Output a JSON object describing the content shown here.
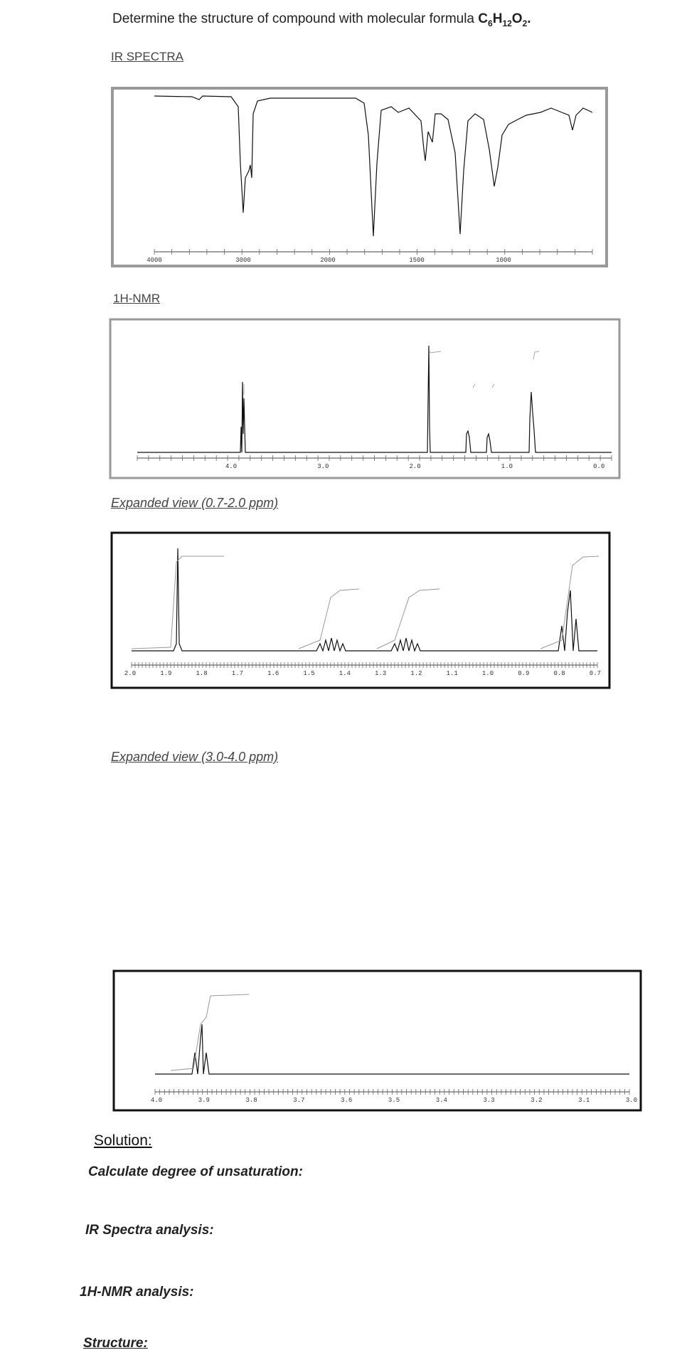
{
  "question": {
    "prefix": "Determine the structure of compound with molecular formula ",
    "formula": [
      "C",
      "6",
      "H",
      "12",
      "O",
      "2"
    ],
    "suffix": "."
  },
  "ir": {
    "heading": "IR SPECTRA",
    "axis_labels": [
      "4000",
      "3000",
      "2000",
      "1500",
      "1000"
    ]
  },
  "nmr": {
    "heading": "1H-NMR",
    "axis_labels": [
      "4.0",
      "3.0",
      "2.0",
      "1.0",
      "0.0"
    ]
  },
  "expanded_1": {
    "heading": "Expanded view (0.7-2.0 ppm)",
    "axis_labels": [
      "2.0",
      "1.9",
      "1.8",
      "1.7",
      "1.6",
      "1.5",
      "1.4",
      "1.3",
      "1.2",
      "1.1",
      "1.0",
      "0.9",
      "0.8",
      "0.7"
    ]
  },
  "expanded_2": {
    "heading": "Expanded view (3.0-4.0 ppm)",
    "axis_labels": [
      "4.0",
      "3.9",
      "3.8",
      "3.7",
      "3.6",
      "3.5",
      "3.4",
      "3.3",
      "3.2",
      "3.1",
      "3.0"
    ]
  },
  "solution": {
    "heading": "Solution:",
    "items": [
      "Calculate degree of unsaturation:",
      "IR Spectra analysis:",
      "1H-NMR analysis:",
      "Structure:"
    ]
  }
}
